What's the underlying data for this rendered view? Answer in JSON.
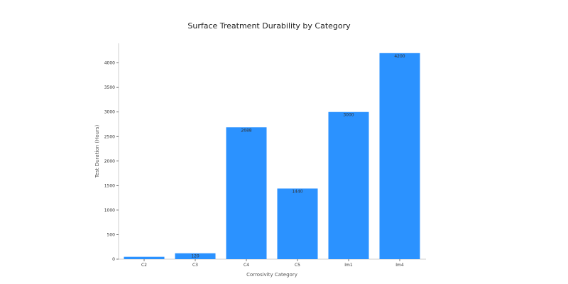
{
  "chart_data": {
    "type": "bar",
    "title": "Surface Treatment Durability by Category",
    "xlabel": "Corrosivity Category",
    "ylabel": "Test Duration (Hours)",
    "categories": [
      "C2",
      "C3",
      "C4",
      "C5",
      "Im1",
      "Im4"
    ],
    "values": [
      48,
      120,
      2688,
      1440,
      3000,
      4200
    ],
    "data_labels": [
      "",
      "120",
      "2688",
      "1440",
      "3000",
      "4200"
    ],
    "ylim": [
      0,
      4400
    ],
    "yticks": [
      0,
      500,
      1000,
      1500,
      2000,
      2500,
      3000,
      3500,
      4000
    ],
    "grid": false,
    "colors": {
      "bar": "#2b92ff"
    }
  }
}
